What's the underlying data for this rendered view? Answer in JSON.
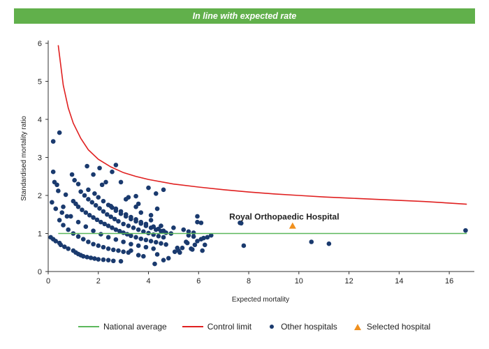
{
  "header": {
    "title": "In line with expected rate"
  },
  "chart_data": {
    "type": "scatter",
    "title": "In line with expected rate",
    "xlabel": "Expected mortality",
    "ylabel": "Standardised mortality ratio",
    "xlim": [
      0,
      17
    ],
    "ylim": [
      0,
      6
    ],
    "xticks": [
      0,
      2,
      4,
      6,
      8,
      10,
      12,
      14,
      16
    ],
    "yticks": [
      0,
      1,
      2,
      3,
      4,
      5,
      6
    ],
    "grid": false,
    "legend_position": "bottom",
    "annotation": "Royal Orthopaedic Hospital",
    "colors": {
      "national_average": "#5cb85c",
      "control_limit": "#e02020",
      "other_hospitals": "#1a3a6e",
      "selected_hospital": "#f0901e"
    },
    "series": [
      {
        "name": "National average",
        "kind": "line",
        "x": [
          0.4,
          16.7
        ],
        "y": [
          1,
          1
        ]
      },
      {
        "name": "Control limit",
        "kind": "line",
        "x": [
          0.4,
          0.6,
          0.8,
          1.0,
          1.3,
          1.6,
          2.0,
          2.5,
          3.0,
          3.5,
          4.0,
          5.0,
          6.0,
          7.0,
          8.0,
          9.0,
          10.0,
          11.0,
          12.0,
          13.0,
          14.0,
          15.0,
          16.0,
          16.7
        ],
        "y": [
          5.95,
          4.9,
          4.3,
          3.9,
          3.5,
          3.2,
          2.95,
          2.75,
          2.6,
          2.5,
          2.42,
          2.3,
          2.22,
          2.15,
          2.09,
          2.04,
          2.0,
          1.96,
          1.93,
          1.9,
          1.87,
          1.84,
          1.8,
          1.77
        ]
      },
      {
        "name": "Other hospitals",
        "kind": "scatter",
        "x": [
          0.2,
          0.45,
          0.2,
          0.25,
          0.35,
          0.4,
          0.15,
          0.3,
          0.55,
          0.75,
          0.7,
          0.1,
          0.2,
          0.3,
          0.45,
          0.5,
          0.65,
          0.8,
          1.0,
          1.1,
          1.2,
          1.3,
          1.4,
          1.55,
          1.7,
          1.85,
          2.0,
          2.2,
          2.4,
          2.6,
          2.9,
          0.45,
          0.6,
          0.8,
          1.0,
          1.2,
          1.4,
          1.6,
          1.8,
          2.0,
          2.2,
          2.4,
          2.6,
          2.8,
          3.0,
          3.2,
          0.6,
          0.9,
          1.2,
          1.5,
          1.8,
          2.1,
          2.4,
          2.7,
          3.0,
          3.3,
          3.6,
          3.9,
          4.2,
          0.95,
          1.05,
          1.2,
          1.3,
          1.45,
          1.6,
          1.75,
          1.9,
          2.05,
          2.2,
          2.35,
          2.5,
          2.65,
          2.8,
          3.0,
          3.2,
          3.4,
          3.6,
          3.8,
          4.0,
          4.2,
          4.4,
          4.6,
          1.0,
          1.1,
          1.2,
          1.35,
          1.5,
          1.65,
          1.8,
          1.95,
          2.1,
          2.25,
          2.4,
          2.55,
          2.7,
          2.85,
          3.0,
          3.15,
          3.3,
          3.5,
          3.7,
          3.9,
          4.1,
          4.3,
          4.5,
          4.7,
          1.6,
          1.85,
          2.0,
          2.2,
          2.4,
          2.55,
          2.7,
          2.9,
          3.1,
          3.3,
          3.5,
          3.7,
          3.9,
          4.1,
          4.3,
          4.5,
          4.7,
          2.5,
          2.7,
          2.9,
          3.1,
          3.3,
          3.5,
          3.7,
          3.9,
          4.2,
          4.4,
          4.6,
          4.9,
          1.55,
          1.8,
          2.3,
          2.55,
          2.7,
          2.9,
          3.2,
          3.5,
          4.0,
          4.3,
          4.6,
          4.35,
          4.1,
          3.6,
          2.05,
          2.15,
          3.1,
          3.5,
          3.7,
          4.1,
          4.5,
          5.0,
          5.2,
          5.4,
          5.55,
          5.6,
          5.7,
          5.8,
          5.95,
          6.1,
          6.2,
          6.35,
          6.5,
          5.25,
          5.35,
          5.5,
          5.6,
          5.75,
          5.85,
          5.95,
          6.1,
          6.25,
          3.3,
          3.6,
          3.8,
          4.25,
          4.35,
          4.6,
          4.8,
          5.05,
          5.15,
          5.8,
          5.95,
          6.15,
          7.65,
          7.7,
          7.8,
          10.5,
          11.2,
          16.65
        ],
        "y": [
          3.42,
          3.65,
          2.62,
          2.35,
          2.28,
          2.12,
          1.82,
          1.65,
          1.55,
          1.45,
          2.02,
          0.9,
          0.85,
          0.8,
          0.75,
          0.7,
          0.65,
          0.6,
          0.55,
          0.5,
          0.46,
          0.43,
          0.4,
          0.38,
          0.36,
          0.34,
          0.32,
          0.31,
          0.3,
          0.28,
          0.27,
          1.35,
          1.22,
          1.1,
          1.0,
          0.92,
          0.85,
          0.78,
          0.72,
          0.68,
          0.64,
          0.6,
          0.57,
          0.55,
          0.52,
          0.5,
          1.7,
          1.45,
          1.3,
          1.18,
          1.07,
          0.98,
          0.9,
          0.84,
          0.78,
          0.72,
          0.68,
          0.64,
          0.6,
          2.55,
          2.4,
          2.3,
          2.1,
          2.0,
          1.9,
          1.82,
          1.74,
          1.66,
          1.58,
          1.5,
          1.44,
          1.38,
          1.32,
          1.25,
          1.2,
          1.15,
          1.1,
          1.05,
          1.01,
          0.97,
          0.93,
          0.9,
          1.85,
          1.78,
          1.7,
          1.62,
          1.55,
          1.48,
          1.42,
          1.36,
          1.3,
          1.25,
          1.2,
          1.15,
          1.1,
          1.06,
          1.02,
          0.98,
          0.94,
          0.9,
          0.86,
          0.83,
          0.8,
          0.77,
          0.74,
          0.71,
          2.15,
          2.05,
          1.95,
          1.85,
          1.75,
          1.68,
          1.6,
          1.52,
          1.45,
          1.38,
          1.32,
          1.26,
          1.2,
          1.15,
          1.1,
          1.06,
          1.02,
          1.72,
          1.65,
          1.58,
          1.5,
          1.43,
          1.37,
          1.3,
          1.25,
          1.18,
          1.12,
          1.07,
          1.0,
          2.77,
          2.55,
          2.35,
          2.62,
          2.8,
          2.35,
          1.95,
          1.98,
          2.2,
          2.05,
          2.15,
          1.65,
          1.48,
          1.78,
          2.72,
          2.28,
          1.9,
          1.7,
          1.55,
          1.35,
          1.2,
          1.15,
          0.55,
          1.1,
          0.75,
          1.05,
          0.6,
          1.02,
          1.3,
          1.28,
          0.88,
          0.9,
          0.95,
          0.5,
          0.62,
          0.78,
          0.95,
          0.58,
          0.7,
          1.45,
          0.85,
          0.7,
          0.55,
          0.43,
          0.4,
          0.2,
          0.45,
          0.3,
          0.35,
          0.52,
          0.62,
          0.92,
          0.8,
          0.55,
          1.28,
          1.27,
          0.68,
          0.78,
          0.73,
          1.08
        ]
      },
      {
        "name": "Selected hospital",
        "kind": "triangle",
        "x": [
          9.75
        ],
        "y": [
          1.2
        ]
      }
    ]
  }
}
